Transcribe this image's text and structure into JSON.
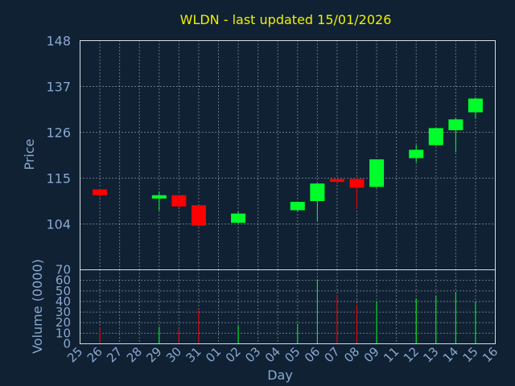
{
  "chart_data": {
    "type": "candlestick",
    "title": "WLDN - last updated 15/01/2026",
    "xlabel": "Day",
    "price_panel": {
      "ylabel": "Price",
      "ylim": [
        93,
        148
      ],
      "yticks": [
        104,
        115,
        126,
        137,
        148
      ]
    },
    "volume_panel": {
      "ylabel": "Volume (0000)",
      "ylim": [
        0,
        70
      ],
      "yticks": [
        0,
        10,
        20,
        30,
        40,
        50,
        60,
        70
      ]
    },
    "x_tick_labels": [
      "25",
      "26",
      "27",
      "28",
      "29",
      "30",
      "31",
      "01",
      "02",
      "03",
      "04",
      "05",
      "06",
      "07",
      "08",
      "09",
      "11",
      "12",
      "13",
      "14",
      "15",
      "16"
    ],
    "colors": {
      "up": "#00ff2a",
      "down": "#ff0000",
      "background": "#0f2133",
      "title": "#f0f000",
      "text": "#8aa8d0"
    },
    "grid": true,
    "candles": [
      {
        "day": "26",
        "open": 112.3,
        "high": 112.5,
        "low": 110.4,
        "close": 110.9,
        "volume": 15
      },
      {
        "day": "29",
        "open": 110.1,
        "high": 111.8,
        "low": 107.2,
        "close": 110.9,
        "volume": 16
      },
      {
        "day": "30",
        "open": 110.9,
        "high": 110.9,
        "low": 107.8,
        "close": 108.2,
        "volume": 14
      },
      {
        "day": "31",
        "open": 108.5,
        "high": 108.5,
        "low": 103.4,
        "close": 103.6,
        "volume": 32
      },
      {
        "day": "02",
        "open": 104.3,
        "high": 106.9,
        "low": 103.9,
        "close": 106.5,
        "volume": 17
      },
      {
        "day": "05",
        "open": 107.3,
        "high": 109.4,
        "low": 107.1,
        "close": 109.3,
        "volume": 19
      },
      {
        "day": "06",
        "open": 109.5,
        "high": 113.7,
        "low": 104.7,
        "close": 113.7,
        "volume": 60
      },
      {
        "day": "07",
        "open": 114.8,
        "high": 114.8,
        "low": 113.6,
        "close": 114.1,
        "volume": 46
      },
      {
        "day": "08",
        "open": 114.8,
        "high": 115.1,
        "low": 107.7,
        "close": 112.7,
        "volume": 37
      },
      {
        "day": "09",
        "open": 112.9,
        "high": 119.5,
        "low": 112.7,
        "close": 119.5,
        "volume": 40
      },
      {
        "day": "12",
        "open": 119.8,
        "high": 123.0,
        "low": 118.8,
        "close": 121.8,
        "volume": 43
      },
      {
        "day": "13",
        "open": 122.9,
        "high": 127.0,
        "low": 122.8,
        "close": 127.0,
        "volume": 45
      },
      {
        "day": "14",
        "open": 126.5,
        "high": 129.5,
        "low": 121.2,
        "close": 129.1,
        "volume": 49
      },
      {
        "day": "15",
        "open": 130.8,
        "high": 134.4,
        "low": 129.2,
        "close": 134.1,
        "volume": 40
      }
    ]
  }
}
